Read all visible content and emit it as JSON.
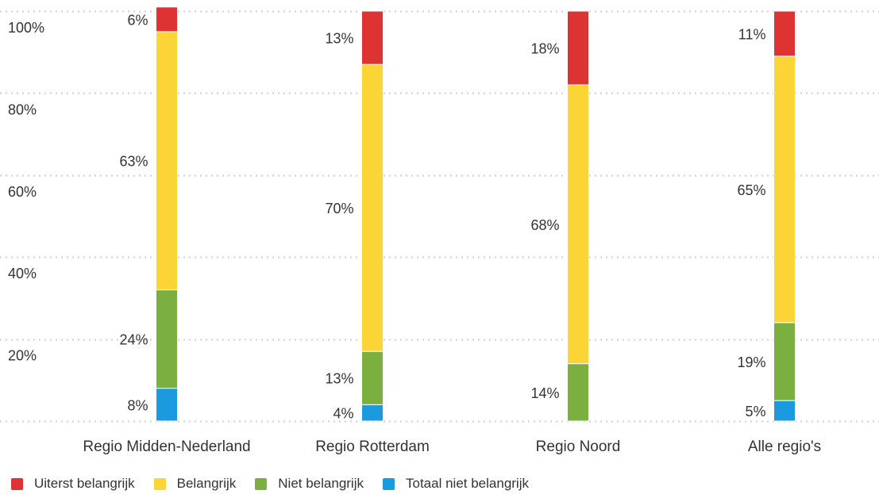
{
  "colors": {
    "uiterst": "#dd3333",
    "belangrijk": "#fbd535",
    "niet": "#7bb040",
    "totaal_niet": "#1b9ae0",
    "grid": "#cfcfcf",
    "text": "#333333"
  },
  "chart_data": {
    "type": "bar",
    "stacked": true,
    "percent_stacked": true,
    "grid": true,
    "legend_position": "bottom-left",
    "categories": [
      "Regio Midden-Nederland",
      "Regio Rotterdam",
      "Regio Noord",
      "Alle regio's"
    ],
    "y_ticks": [
      "100%",
      "80%",
      "60%",
      "40%",
      "20%"
    ],
    "ylim": [
      0,
      100
    ],
    "series": [
      {
        "name": "Totaal niet belangrijk",
        "color_key": "totaal_niet",
        "values": [
          8,
          4,
          0,
          5
        ],
        "labels": [
          "8%",
          "4%",
          "",
          "5%"
        ]
      },
      {
        "name": "Niet belangrijk",
        "color_key": "niet",
        "values": [
          24,
          13,
          14,
          19
        ],
        "labels": [
          "24%",
          "13%",
          "14%",
          "19%"
        ]
      },
      {
        "name": "Belangrijk",
        "color_key": "belangrijk",
        "values": [
          63,
          70,
          68,
          65
        ],
        "labels": [
          "63%",
          "70%",
          "68%",
          "65%"
        ]
      },
      {
        "name": "Uiterst belangrijk",
        "color_key": "uiterst",
        "values": [
          6,
          13,
          18,
          11
        ],
        "labels": [
          "6%",
          "13%",
          "18%",
          "11%"
        ]
      }
    ],
    "legend": [
      {
        "label": "Uiterst belangrijk",
        "color_key": "uiterst"
      },
      {
        "label": "Belangrijk",
        "color_key": "belangrijk"
      },
      {
        "label": "Niet belangrijk",
        "color_key": "niet"
      },
      {
        "label": "Totaal niet belangrijk",
        "color_key": "totaal_niet"
      }
    ]
  }
}
